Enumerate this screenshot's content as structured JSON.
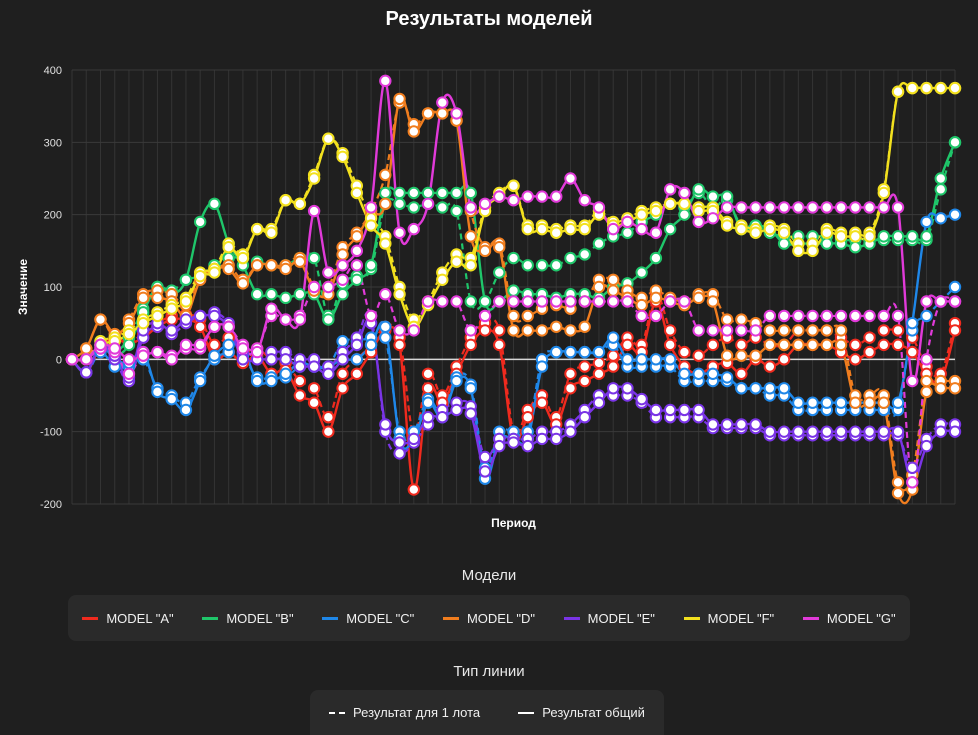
{
  "chart_data": {
    "type": "line",
    "title": "Результаты моделей",
    "xlabel": "Период",
    "ylabel": "Значение",
    "ylim": [
      -200,
      400
    ],
    "yticks": [
      400,
      300,
      200,
      100,
      0,
      -100,
      -200
    ],
    "x_count": 63,
    "series": [
      {
        "name": "MODEL \"A\"",
        "color": "#ef2a1e",
        "total": [
          0,
          -18,
          18,
          28,
          22,
          30,
          45,
          55,
          55,
          45,
          0,
          10,
          -5,
          5,
          -20,
          -15,
          -50,
          -60,
          -100,
          -40,
          -20,
          10,
          40,
          20,
          -180,
          -40,
          -60,
          -20,
          20,
          40,
          20,
          -110,
          -80,
          -60,
          -90,
          -40,
          -30,
          -20,
          -10,
          20,
          10,
          80,
          20,
          -10,
          -20,
          -10,
          -5,
          -20,
          0,
          -10,
          0,
          20,
          20,
          20,
          10,
          0,
          10,
          20,
          20,
          10,
          -20,
          -30,
          40
        ],
        "lot": [
          0,
          -18,
          20,
          28,
          25,
          35,
          50,
          60,
          62,
          55,
          20,
          30,
          10,
          15,
          0,
          -5,
          -30,
          -40,
          -80,
          -20,
          0,
          20,
          45,
          30,
          -105,
          -20,
          -50,
          -10,
          30,
          50,
          40,
          -100,
          -70,
          -50,
          -80,
          -20,
          -10,
          -5,
          5,
          30,
          20,
          90,
          40,
          10,
          5,
          20,
          30,
          20,
          30,
          20,
          20,
          40,
          40,
          40,
          30,
          20,
          30,
          40,
          40,
          30,
          -10,
          -20,
          50
        ]
      },
      {
        "name": "MODEL \"B\"",
        "color": "#1fc66a",
        "total": [
          0,
          -18,
          20,
          5,
          20,
          65,
          100,
          90,
          110,
          190,
          215,
          160,
          130,
          90,
          90,
          85,
          90,
          90,
          55,
          90,
          110,
          130,
          230,
          230,
          230,
          230,
          230,
          230,
          230,
          80,
          80,
          95,
          90,
          90,
          85,
          90,
          90,
          85,
          100,
          105,
          120,
          140,
          180,
          200,
          235,
          225,
          225,
          180,
          185,
          180,
          160,
          160,
          160,
          160,
          160,
          155,
          160,
          170,
          170,
          170,
          170,
          250,
          300
        ],
        "lot": [
          0,
          -18,
          25,
          10,
          30,
          70,
          100,
          95,
          110,
          115,
          130,
          140,
          140,
          135,
          130,
          130,
          140,
          140,
          60,
          105,
          115,
          125,
          215,
          215,
          210,
          215,
          210,
          205,
          80,
          80,
          120,
          140,
          130,
          130,
          130,
          140,
          145,
          160,
          170,
          175,
          190,
          200,
          215,
          210,
          230,
          210,
          220,
          185,
          185,
          175,
          170,
          170,
          170,
          170,
          165,
          165,
          165,
          165,
          165,
          165,
          165,
          235,
          300
        ]
      },
      {
        "name": "MODEL \"C\"",
        "color": "#1f87e8",
        "total": [
          0,
          -18,
          18,
          0,
          -5,
          10,
          -45,
          -55,
          -70,
          -30,
          5,
          20,
          15,
          -30,
          -30,
          -20,
          -5,
          -10,
          -10,
          0,
          0,
          20,
          45,
          -110,
          -110,
          -60,
          -80,
          -30,
          -40,
          -165,
          -110,
          -110,
          -110,
          -10,
          10,
          10,
          10,
          10,
          30,
          0,
          0,
          0,
          0,
          -20,
          -20,
          -20,
          -25,
          -40,
          -40,
          -40,
          -40,
          -60,
          -60,
          -60,
          -60,
          -60,
          -60,
          -60,
          -60,
          50,
          190,
          195,
          200
        ],
        "lot": [
          0,
          -18,
          10,
          -10,
          -10,
          0,
          -40,
          -50,
          -60,
          -25,
          0,
          10,
          5,
          -25,
          -25,
          -25,
          -10,
          -10,
          -10,
          25,
          25,
          30,
          30,
          -100,
          -100,
          -55,
          -75,
          -25,
          -35,
          -150,
          -100,
          -100,
          -100,
          0,
          10,
          10,
          10,
          10,
          20,
          -10,
          -10,
          -10,
          -10,
          -30,
          -30,
          -30,
          -30,
          -40,
          -40,
          -50,
          -50,
          -70,
          -70,
          -70,
          -70,
          -70,
          -70,
          -70,
          -70,
          40,
          60,
          80,
          100
        ]
      },
      {
        "name": "MODEL \"D\"",
        "color": "#f07d1e",
        "total": [
          0,
          15,
          55,
          35,
          50,
          85,
          85,
          80,
          60,
          110,
          125,
          125,
          105,
          130,
          130,
          125,
          135,
          95,
          90,
          145,
          170,
          200,
          215,
          360,
          315,
          340,
          340,
          330,
          170,
          150,
          155,
          40,
          40,
          40,
          45,
          40,
          45,
          100,
          95,
          85,
          75,
          85,
          80,
          75,
          85,
          80,
          5,
          5,
          5,
          20,
          20,
          20,
          20,
          20,
          20,
          -60,
          -60,
          -60,
          -185,
          -180,
          -45,
          -40,
          -40
        ],
        "lot": [
          0,
          15,
          55,
          30,
          55,
          90,
          95,
          90,
          75,
          115,
          125,
          130,
          110,
          130,
          130,
          130,
          140,
          100,
          100,
          155,
          175,
          205,
          255,
          355,
          325,
          340,
          340,
          330,
          205,
          155,
          160,
          60,
          60,
          70,
          75,
          70,
          80,
          110,
          110,
          95,
          85,
          95,
          85,
          80,
          90,
          90,
          55,
          55,
          50,
          40,
          40,
          40,
          40,
          40,
          40,
          -50,
          -50,
          -50,
          -170,
          -160,
          -30,
          -30,
          -30
        ]
      },
      {
        "name": "MODEL \"E\"",
        "color": "#7a34e6",
        "total": [
          0,
          -18,
          20,
          5,
          -25,
          40,
          50,
          40,
          55,
          60,
          60,
          45,
          0,
          0,
          0,
          0,
          -10,
          -10,
          -20,
          0,
          20,
          50,
          -90,
          -115,
          -110,
          -80,
          -80,
          -70,
          -75,
          -155,
          -120,
          -115,
          -120,
          -110,
          -110,
          -100,
          -80,
          -60,
          -40,
          -40,
          -55,
          -70,
          -70,
          -70,
          -70,
          -90,
          -90,
          -90,
          -90,
          -100,
          -100,
          -100,
          -100,
          -100,
          -100,
          -100,
          -100,
          -100,
          -100,
          -170,
          -120,
          -100,
          -100
        ],
        "lot": [
          0,
          -18,
          15,
          0,
          -30,
          30,
          45,
          35,
          50,
          60,
          65,
          50,
          10,
          10,
          10,
          10,
          0,
          0,
          -10,
          10,
          30,
          60,
          -100,
          -130,
          -115,
          -90,
          -70,
          -60,
          -65,
          -135,
          -110,
          -110,
          -110,
          -100,
          -100,
          -90,
          -70,
          -50,
          -50,
          -50,
          -60,
          -80,
          -80,
          -80,
          -80,
          -95,
          -95,
          -95,
          -95,
          -105,
          -105,
          -105,
          -105,
          -105,
          -105,
          -105,
          -105,
          -105,
          -105,
          -150,
          -110,
          -90,
          -90
        ]
      },
      {
        "name": "MODEL \"F\"",
        "color": "#f2e01e",
        "total": [
          0,
          0,
          20,
          25,
          35,
          50,
          60,
          70,
          80,
          115,
          120,
          155,
          140,
          180,
          175,
          220,
          215,
          250,
          305,
          280,
          230,
          185,
          160,
          90,
          45,
          75,
          110,
          135,
          130,
          205,
          225,
          240,
          180,
          180,
          175,
          180,
          180,
          200,
          185,
          190,
          200,
          205,
          215,
          215,
          205,
          205,
          185,
          180,
          175,
          180,
          175,
          150,
          150,
          175,
          170,
          170,
          170,
          230,
          370,
          375,
          375,
          375,
          375
        ],
        "lot": [
          0,
          0,
          25,
          30,
          40,
          55,
          65,
          75,
          85,
          120,
          125,
          160,
          145,
          180,
          180,
          220,
          215,
          255,
          305,
          285,
          240,
          195,
          170,
          100,
          55,
          80,
          120,
          145,
          140,
          210,
          230,
          240,
          185,
          185,
          180,
          185,
          185,
          205,
          190,
          195,
          205,
          210,
          215,
          215,
          210,
          210,
          190,
          185,
          180,
          185,
          180,
          160,
          160,
          180,
          175,
          175,
          175,
          235,
          370,
          375,
          375,
          375,
          375
        ]
      },
      {
        "name": "MODEL \"G\"",
        "color": "#e13ad9",
        "total": [
          0,
          0,
          20,
          15,
          0,
          5,
          10,
          0,
          20,
          20,
          45,
          45,
          15,
          10,
          70,
          55,
          55,
          205,
          120,
          130,
          150,
          210,
          385,
          175,
          180,
          215,
          355,
          340,
          210,
          215,
          225,
          220,
          225,
          225,
          225,
          250,
          220,
          210,
          180,
          190,
          180,
          175,
          235,
          230,
          190,
          195,
          210,
          210,
          210,
          210,
          210,
          210,
          210,
          210,
          210,
          210,
          210,
          210,
          210,
          -30,
          80,
          80,
          80
        ],
        "lot": [
          0,
          0,
          15,
          10,
          -20,
          10,
          10,
          5,
          15,
          15,
          45,
          45,
          20,
          15,
          60,
          55,
          60,
          100,
          100,
          110,
          130,
          60,
          90,
          40,
          40,
          80,
          80,
          80,
          40,
          60,
          80,
          80,
          80,
          80,
          80,
          80,
          80,
          80,
          80,
          80,
          60,
          60,
          80,
          80,
          40,
          40,
          40,
          40,
          40,
          60,
          60,
          60,
          60,
          60,
          60,
          60,
          60,
          60,
          60,
          -170,
          0,
          80,
          80
        ]
      }
    ]
  },
  "legend_models": {
    "title": "Модели",
    "items": [
      {
        "label": "MODEL \"A\"",
        "color": "#ef2a1e"
      },
      {
        "label": "MODEL \"B\"",
        "color": "#1fc66a"
      },
      {
        "label": "MODEL \"C\"",
        "color": "#1f87e8"
      },
      {
        "label": "MODEL \"D\"",
        "color": "#f07d1e"
      },
      {
        "label": "MODEL \"E\"",
        "color": "#7a34e6"
      },
      {
        "label": "MODEL \"F\"",
        "color": "#f2e01e"
      },
      {
        "label": "MODEL \"G\"",
        "color": "#e13ad9"
      }
    ]
  },
  "legend_lines": {
    "title": "Тип линии",
    "dashed_label": "Результат для 1 лота",
    "solid_label": "Результат общий"
  }
}
